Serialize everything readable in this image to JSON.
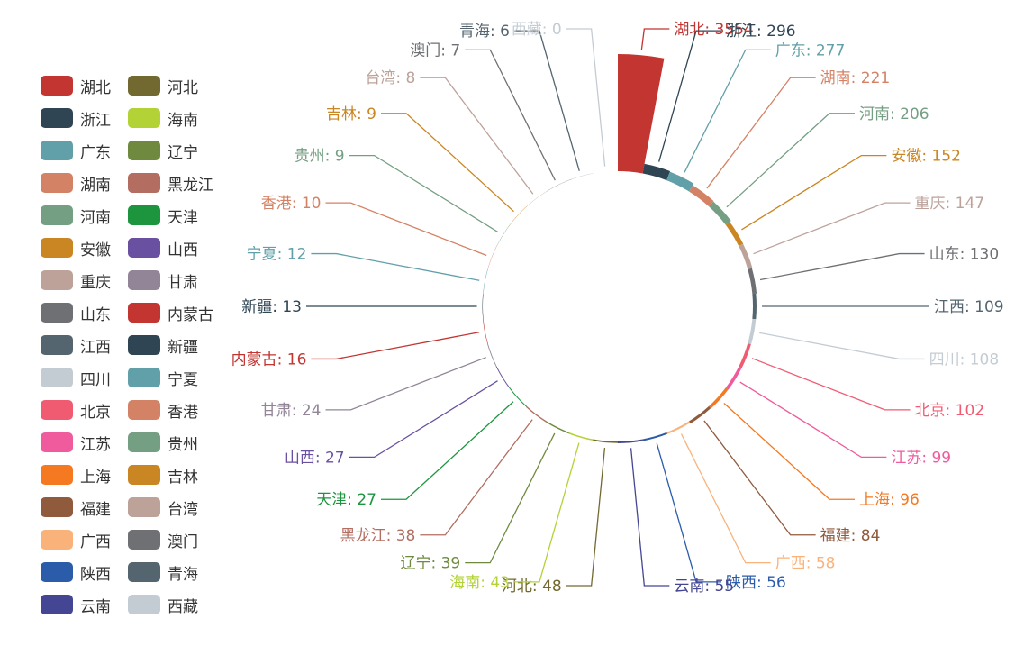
{
  "chart_data": {
    "type": "pie",
    "variant": "rose-ring",
    "legend_position": "left",
    "series": [
      {
        "name": "湖北",
        "value": 3554,
        "color": "#c23531"
      },
      {
        "name": "浙江",
        "value": 296,
        "color": "#2f4554"
      },
      {
        "name": "广东",
        "value": 277,
        "color": "#61a0a8"
      },
      {
        "name": "湖南",
        "value": 221,
        "color": "#d48265"
      },
      {
        "name": "河南",
        "value": 206,
        "color": "#749f83"
      },
      {
        "name": "安徽",
        "value": 152,
        "color": "#ca8622"
      },
      {
        "name": "重庆",
        "value": 147,
        "color": "#bda29a"
      },
      {
        "name": "山东",
        "value": 130,
        "color": "#6e7074"
      },
      {
        "name": "江西",
        "value": 109,
        "color": "#546570"
      },
      {
        "name": "四川",
        "value": 108,
        "color": "#c4ccd3"
      },
      {
        "name": "北京",
        "value": 102,
        "color": "#f05b72"
      },
      {
        "name": "江苏",
        "value": 99,
        "color": "#ef5b9c"
      },
      {
        "name": "上海",
        "value": 96,
        "color": "#f47920"
      },
      {
        "name": "福建",
        "value": 84,
        "color": "#905a3d"
      },
      {
        "name": "广西",
        "value": 58,
        "color": "#fab27b"
      },
      {
        "name": "陕西",
        "value": 56,
        "color": "#2a5caa"
      },
      {
        "name": "云南",
        "value": 55,
        "color": "#444693"
      },
      {
        "name": "河北",
        "value": 48,
        "color": "#726930"
      },
      {
        "name": "海南",
        "value": 43,
        "color": "#b2d235"
      },
      {
        "name": "辽宁",
        "value": 39,
        "color": "#6f8a3e"
      },
      {
        "name": "黑龙江",
        "value": 38,
        "color": "#b36d61"
      },
      {
        "name": "天津",
        "value": 27,
        "color": "#1d953f"
      },
      {
        "name": "山西",
        "value": 27,
        "color": "#6950a1"
      },
      {
        "name": "甘肃",
        "value": 24,
        "color": "#918597"
      },
      {
        "name": "内蒙古",
        "value": 16,
        "color": "#c23531"
      },
      {
        "name": "新疆",
        "value": 13,
        "color": "#2f4554"
      },
      {
        "name": "宁夏",
        "value": 12,
        "color": "#61a0a8"
      },
      {
        "name": "香港",
        "value": 10,
        "color": "#d48265"
      },
      {
        "name": "贵州",
        "value": 9,
        "color": "#749f83"
      },
      {
        "name": "吉林",
        "value": 9,
        "color": "#ca8622"
      },
      {
        "name": "台湾",
        "value": 8,
        "color": "#bda29a"
      },
      {
        "name": "澳门",
        "value": 7,
        "color": "#6e7074"
      },
      {
        "name": "青海",
        "value": 6,
        "color": "#546570"
      },
      {
        "name": "西藏",
        "value": 0,
        "color": "#c4ccd3"
      }
    ]
  }
}
